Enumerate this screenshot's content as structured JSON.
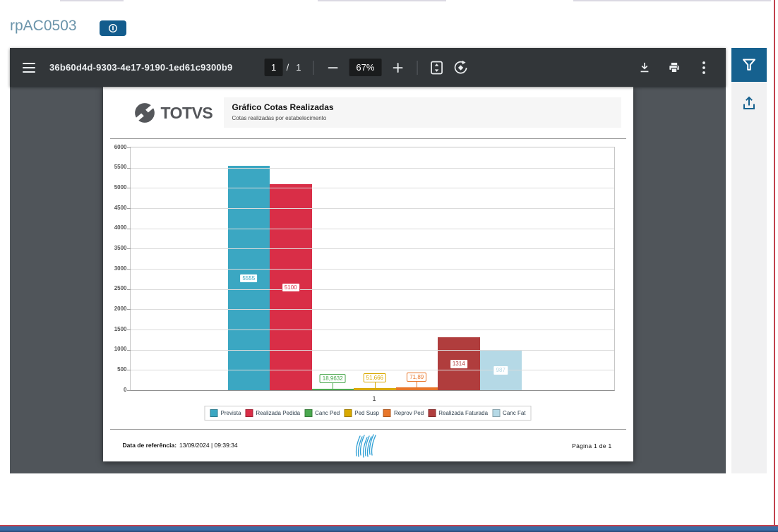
{
  "app": {
    "title": "rpAC0503"
  },
  "pdf_toolbar": {
    "filename": "36b60d4d-9303-4e17-9190-1ed61c9300b9",
    "current_page": "1",
    "page_divider": "/",
    "total_pages": "1",
    "zoom_value": "67%"
  },
  "colors": {
    "accent_blue": "#16618F",
    "info_button_blue": "#135C8D",
    "toolbar_bg": "#323639",
    "viewer_bg": "#50555A",
    "app_title_text": "#6B94AA",
    "bottom_bar_blue": "#3A6CA5",
    "frame_red": "#C2414E"
  },
  "document": {
    "brand": "TOTVS",
    "title": "Gráfico Cotas Realizadas",
    "subtitle": "Cotas realizadas por estabelecimento",
    "footer": {
      "reference_label": "Data de referência:",
      "reference_value": "13/09/2024 | 09:39:34",
      "page_info": "Página 1 de 1"
    }
  },
  "chart_data": {
    "type": "bar",
    "title": "Gráfico Cotas Realizadas",
    "categories": [
      "1"
    ],
    "series": [
      {
        "name": "Prevista",
        "values": [
          5555
        ],
        "label": "5555",
        "color": "#3BA7C2"
      },
      {
        "name": "Realizada Pedida",
        "values": [
          5100
        ],
        "label": "5100",
        "color": "#D92E47"
      },
      {
        "name": "Canc Ped",
        "values": [
          18.9632
        ],
        "label": "18,9632",
        "color": "#4BA84F"
      },
      {
        "name": "Ped Susp",
        "values": [
          51.666
        ],
        "label": "51,666",
        "color": "#D9A900"
      },
      {
        "name": "Reprov Ped",
        "values": [
          71.89
        ],
        "label": "71,89",
        "color": "#E8762A"
      },
      {
        "name": "Realizada Faturada",
        "values": [
          1314
        ],
        "label": "1314",
        "color": "#B03D3D"
      },
      {
        "name": "Canc Fat",
        "values": [
          987
        ],
        "label": "987",
        "color": "#B5D9E6"
      }
    ],
    "ylim": [
      0,
      6000
    ],
    "ytick_step": 500,
    "grid": true,
    "legend_position": "bottom"
  }
}
